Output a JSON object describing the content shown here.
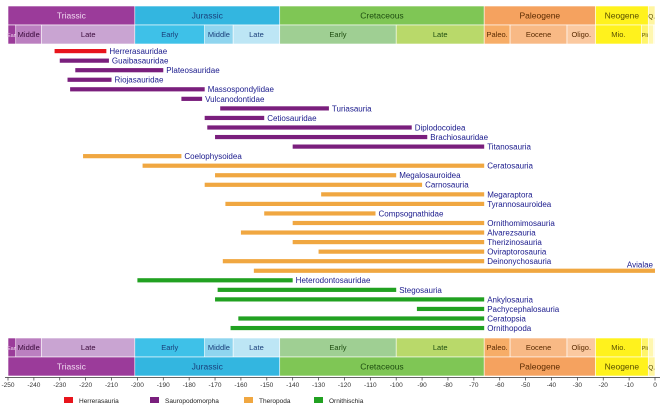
{
  "chart_data": {
    "type": "bar",
    "xlim": [
      -250,
      0
    ],
    "xticks": [
      -250,
      -240,
      -230,
      -220,
      -210,
      -200,
      -190,
      -180,
      -170,
      -160,
      -150,
      -140,
      -130,
      -120,
      -110,
      -100,
      -90,
      -80,
      -70,
      -60,
      -50,
      -40,
      -30,
      -20,
      -10,
      0
    ],
    "periods": [
      {
        "label": "Triassic",
        "start": -252,
        "end": -201,
        "color": "#9b3b9a",
        "text": "#f0d8f0"
      },
      {
        "label": "Jurassic",
        "start": -201,
        "end": -145,
        "color": "#33b6e0",
        "text": "#1a3f7a"
      },
      {
        "label": "Cretaceous",
        "start": -145,
        "end": -66,
        "color": "#7fc655",
        "text": "#1e4d10"
      },
      {
        "label": "Paleogene",
        "start": -66,
        "end": -23,
        "color": "#f5a25f",
        "text": "#5a2a00"
      },
      {
        "label": "Neogene",
        "start": -23,
        "end": -2.6,
        "color": "#fff21d",
        "text": "#5a5000"
      },
      {
        "label": "Q.",
        "start": -2.6,
        "end": 0,
        "color": "#fff5a0",
        "text": "#5a5000"
      }
    ],
    "epochs": [
      {
        "label": "Ear.",
        "start": -252,
        "end": -247,
        "color": "#9b3b9a",
        "text": "#f0d8f0"
      },
      {
        "label": "Middle",
        "start": -247,
        "end": -237,
        "color": "#bb7fc0",
        "text": "#3a0a3a"
      },
      {
        "label": "Late",
        "start": -237,
        "end": -201,
        "color": "#c9a4d2",
        "text": "#3a0a3a"
      },
      {
        "label": "Early",
        "start": -201,
        "end": -174,
        "color": "#3ec1e8",
        "text": "#1a3f7a"
      },
      {
        "label": "Middle",
        "start": -174,
        "end": -163,
        "color": "#8fd5ef",
        "text": "#1a3f7a"
      },
      {
        "label": "Late",
        "start": -163,
        "end": -145,
        "color": "#bde6f5",
        "text": "#1a3f7a"
      },
      {
        "label": "Early",
        "start": -145,
        "end": -100,
        "color": "#9fcf93",
        "text": "#1e4d10"
      },
      {
        "label": "Late",
        "start": -100,
        "end": -66,
        "color": "#b9d96a",
        "text": "#1e4d10"
      },
      {
        "label": "Paleo.",
        "start": -66,
        "end": -56,
        "color": "#f7ad67",
        "text": "#5a2a00"
      },
      {
        "label": "Eocene",
        "start": -56,
        "end": -34,
        "color": "#f8b985",
        "text": "#5a2a00"
      },
      {
        "label": "Oligo.",
        "start": -34,
        "end": -23,
        "color": "#fbc9a0",
        "text": "#5a2a00"
      },
      {
        "label": "Mio.",
        "start": -23,
        "end": -5.3,
        "color": "#fff21d",
        "text": "#5a5000"
      },
      {
        "label": "Pli",
        "start": -5.3,
        "end": -2.6,
        "color": "#fff56a",
        "text": "#5a5000"
      },
      {
        "label": "PI",
        "start": -2.6,
        "end": -0.5,
        "color": "#fff7b0",
        "text": "#5a5000"
      },
      {
        "label": "H.",
        "start": -0.5,
        "end": 0,
        "color": "#fffbe0",
        "text": "#5a5000"
      }
    ],
    "categories": [
      "Herrerasauria",
      "Sauropodomorpha",
      "Theropoda",
      "Ornithischia"
    ],
    "category_colors": {
      "Herrerasauria": "#e8141c",
      "Sauropodomorpha": "#7a1f7d",
      "Theropoda": "#f0a741",
      "Ornithischia": "#21a121"
    },
    "bars": [
      {
        "label": "Herrerasauridae",
        "group": "Herrerasauria",
        "start": -232,
        "end": -212
      },
      {
        "label": "Guaibasauridae",
        "group": "Sauropodomorpha",
        "start": -230,
        "end": -211
      },
      {
        "label": "Plateosauridae",
        "group": "Sauropodomorpha",
        "start": -224,
        "end": -190
      },
      {
        "label": "Riojasauridae",
        "group": "Sauropodomorpha",
        "start": -227,
        "end": -210
      },
      {
        "label": "Massospondylidae",
        "group": "Sauropodomorpha",
        "start": -226,
        "end": -174
      },
      {
        "label": "Vulcanodontidae",
        "group": "Sauropodomorpha",
        "start": -183,
        "end": -175
      },
      {
        "label": "Turiasauria",
        "group": "Sauropodomorpha",
        "start": -168,
        "end": -126
      },
      {
        "label": "Cetiosauridae",
        "group": "Sauropodomorpha",
        "start": -174,
        "end": -151
      },
      {
        "label": "Diplodocoidea",
        "group": "Sauropodomorpha",
        "start": -173,
        "end": -94
      },
      {
        "label": "Brachiosauridae",
        "group": "Sauropodomorpha",
        "start": -170,
        "end": -88
      },
      {
        "label": "Titanosauria",
        "group": "Sauropodomorpha",
        "start": -140,
        "end": -66
      },
      {
        "label": "Coelophysoidea",
        "group": "Theropoda",
        "start": -221,
        "end": -183
      },
      {
        "label": "Ceratosauria",
        "group": "Theropoda",
        "start": -198,
        "end": -66
      },
      {
        "label": "Megalosauroidea",
        "group": "Theropoda",
        "start": -170,
        "end": -100
      },
      {
        "label": "Carnosauria",
        "group": "Theropoda",
        "start": -174,
        "end": -90
      },
      {
        "label": "Megaraptora",
        "group": "Theropoda",
        "start": -129,
        "end": -66
      },
      {
        "label": "Tyrannosauroidea",
        "group": "Theropoda",
        "start": -166,
        "end": -66
      },
      {
        "label": "Compsognathidae",
        "group": "Theropoda",
        "start": -151,
        "end": -108
      },
      {
        "label": "Ornithomimosauria",
        "group": "Theropoda",
        "start": -140,
        "end": -66
      },
      {
        "label": "Alvarezsauria",
        "group": "Theropoda",
        "start": -160,
        "end": -66
      },
      {
        "label": "Therizinosauria",
        "group": "Theropoda",
        "start": -140,
        "end": -66
      },
      {
        "label": "Oviraptorosauria",
        "group": "Theropoda",
        "start": -130,
        "end": -66
      },
      {
        "label": "Deinonychosauria",
        "group": "Theropoda",
        "start": -167,
        "end": -66
      },
      {
        "label": "Avialae",
        "group": "Theropoda",
        "start": -155,
        "end": 0
      },
      {
        "label": "Heterodontosauridae",
        "group": "Ornithischia",
        "start": -200,
        "end": -140
      },
      {
        "label": "Stegosauria",
        "group": "Ornithischia",
        "start": -169,
        "end": -100
      },
      {
        "label": "Ankylosauria",
        "group": "Ornithischia",
        "start": -170,
        "end": -66
      },
      {
        "label": "Pachycephalosauria",
        "group": "Ornithischia",
        "start": -92,
        "end": -66
      },
      {
        "label": "Ceratopsia",
        "group": "Ornithischia",
        "start": -161,
        "end": -66
      },
      {
        "label": "Ornithopoda",
        "group": "Ornithischia",
        "start": -164,
        "end": -66
      }
    ],
    "legend": [
      "Herrerasauria",
      "Sauropodomorpha",
      "Theropoda",
      "Ornithischia"
    ],
    "legend_placement": "bottom-center",
    "grid": false
  }
}
